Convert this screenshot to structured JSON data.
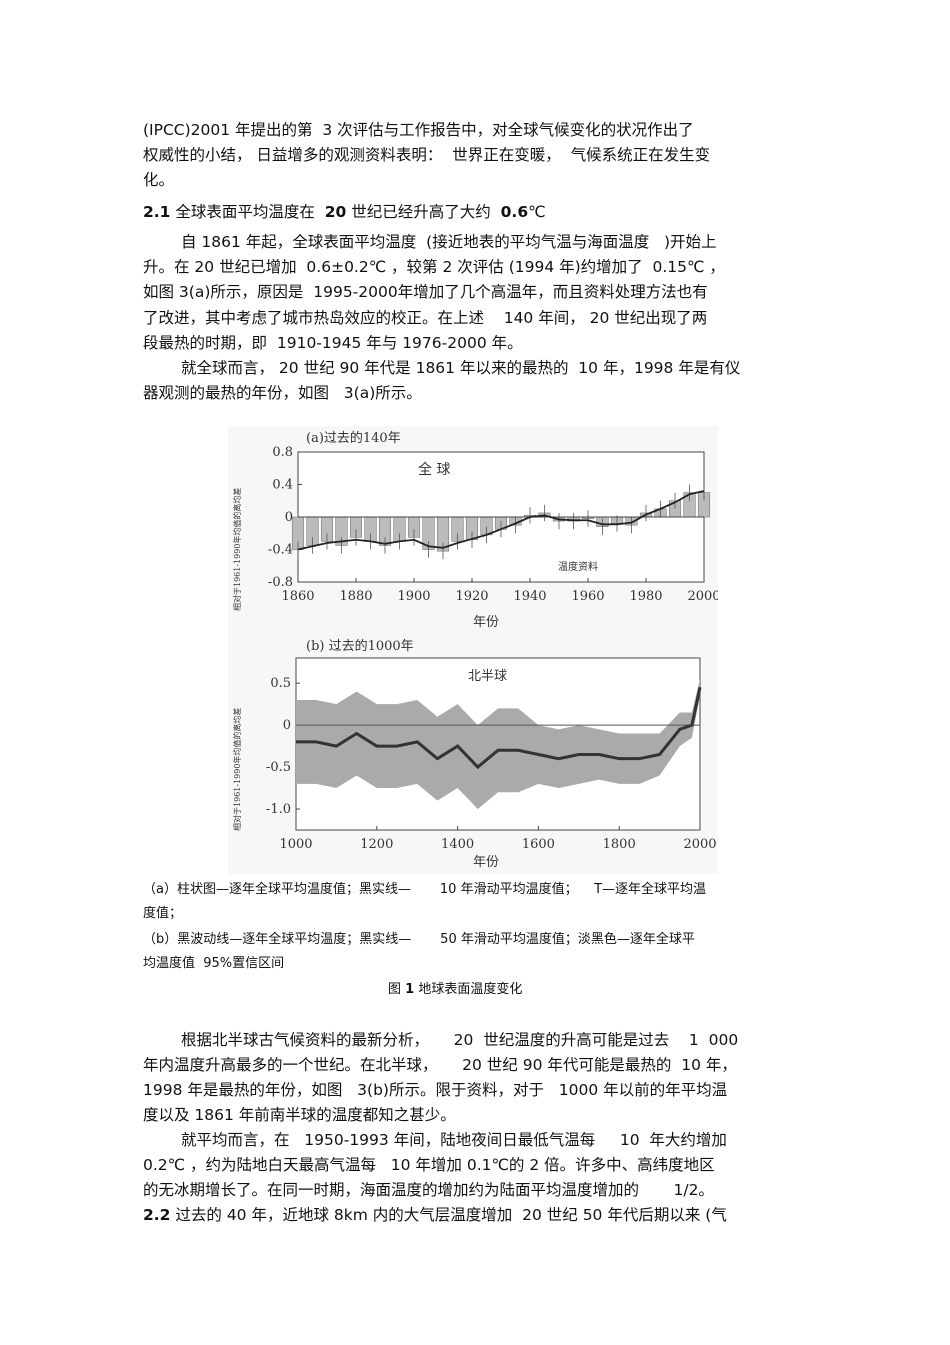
{
  "intro": [
    "(IPCC)2001 年提出的第  3 次评估与工作报告中，对全球气候变化的状况作出了",
    "权威性的小结， 日益增多的观测资料表明：  世界正在变暖，  气候系统正在发生变",
    "化。"
  ],
  "section_2_1": {
    "number": "2.1",
    "title_pre": " 全球表面平均温度在  ",
    "bold_num": "20",
    "title_mid": " 世纪已经升高了大约  ",
    "bold_val": "0.6",
    "unit": "℃"
  },
  "para1": [
    "自 1861 年起，全球表面平均温度  (接近地表的平均气温与海面温度   )开始上",
    "升。在 20 世纪已增加  0.6±0.2℃ ，较第 2 次评估 (1994 年)约增加了  0.15℃ ，",
    "如图 3(a)所示，原因是  1995-2000年增加了几个高温年，而且资料处理方法也有",
    "了改进，其中考虑了城市热岛效应的校正。在上述    140 年间， 20 世纪出现了两",
    "段最热的时期，即  1910-1945 年与 1976-2000 年。"
  ],
  "para2": [
    "就全球而言， 20 世纪 90 年代是 1861 年以来的最热的  10 年，1998 年是有仪",
    "器观测的最热的年份，如图   3(a)所示。"
  ],
  "captions": [
    "（a）柱状图—逐年全球平均温度值；黑实线—       10 年滑动平均温度值；    T—逐年全球平均温",
    "度值；",
    "（b）黑波动线—逐年全球平均温度；黑实线—       50 年滑动平均温度值；淡黑色—逐年全球平",
    "均温度值  95%置信区间"
  ],
  "figure_title": {
    "prefix": "图 ",
    "num": "1",
    "text": " 地球表面温度变化"
  },
  "para3": [
    "根据北半球古气候资料的最新分析，     20  世纪温度的升高可能是过去    1  000",
    "年内温度升高最多的一个世纪。在北半球，     20 世纪 90 年代可能是最热的  10 年，",
    "1998 年是最热的年份，如图   3(b)所示。限于资料，对于   1000 年以前的年平均温",
    "度以及 1861 年前南半球的温度都知之甚少。"
  ],
  "para4": [
    "就平均而言，在   1950-1993 年间，陆地夜间日最低气温每     10  年大约增加",
    "0.2℃ ，约为陆地白天最高气温每   10 年增加 0.1℃的 2 倍。许多中、高纬度地区",
    "的无冰期增长了。在同一时期，海面温度的增加约为陆面平均温度增加的       1/2。"
  ],
  "section_2_2": {
    "number": "2.2",
    "text": " 过去的 40 年，近地球 8km 内的大气层温度增加  20 世纪 50 年代后期以来 (气"
  },
  "chart_data": [
    {
      "type": "bar",
      "title": "(a)过去的140年",
      "annotation": "全  球",
      "legend_text": "温度资料",
      "ylabel": "相对于1961-1990年均值的离均差",
      "xlabel": "年份",
      "xlim": [
        1860,
        2000
      ],
      "ylim": [
        -0.8,
        0.8
      ],
      "xticks": [
        "1860",
        "1880",
        "1900",
        "1920",
        "1940",
        "1960",
        "1980",
        "2000"
      ],
      "yticks": [
        "0.8",
        "0.4",
        "0",
        "-0.4",
        "-0.8"
      ],
      "x": [
        1860,
        1865,
        1870,
        1875,
        1880,
        1885,
        1890,
        1895,
        1900,
        1905,
        1910,
        1915,
        1920,
        1925,
        1930,
        1935,
        1940,
        1945,
        1950,
        1955,
        1960,
        1965,
        1970,
        1975,
        1980,
        1985,
        1990,
        1995,
        2000
      ],
      "values": [
        -0.4,
        -0.35,
        -0.3,
        -0.35,
        -0.25,
        -0.3,
        -0.35,
        -0.3,
        -0.25,
        -0.4,
        -0.42,
        -0.3,
        -0.28,
        -0.22,
        -0.15,
        -0.1,
        0.02,
        0.05,
        -0.05,
        -0.05,
        -0.02,
        -0.12,
        -0.08,
        -0.1,
        0.05,
        0.1,
        0.2,
        0.3,
        0.3
      ],
      "smoothed": [
        -0.4,
        -0.36,
        -0.32,
        -0.3,
        -0.28,
        -0.3,
        -0.33,
        -0.3,
        -0.28,
        -0.36,
        -0.38,
        -0.32,
        -0.27,
        -0.22,
        -0.15,
        -0.08,
        0.0,
        0.02,
        -0.03,
        -0.04,
        -0.04,
        -0.09,
        -0.09,
        -0.07,
        0.03,
        0.1,
        0.18,
        0.28,
        0.32
      ]
    },
    {
      "type": "line",
      "title": "(b) 过去的1000年",
      "annotation": "北半球",
      "ylabel": "相对于1961-1990年均值的离均差",
      "xlabel": "年份",
      "xlim": [
        1000,
        2000
      ],
      "ylim": [
        -1.25,
        0.8
      ],
      "xticks": [
        "1000",
        "1200",
        "1400",
        "1600",
        "1800",
        "2000"
      ],
      "yticks": [
        "0.5",
        "0",
        "-0.5",
        "-1.0"
      ],
      "x": [
        1000,
        1050,
        1100,
        1150,
        1200,
        1250,
        1300,
        1350,
        1400,
        1450,
        1500,
        1550,
        1600,
        1650,
        1700,
        1750,
        1800,
        1850,
        1900,
        1950,
        1980,
        2000
      ],
      "values": [
        -0.2,
        -0.2,
        -0.25,
        -0.1,
        -0.25,
        -0.25,
        -0.2,
        -0.4,
        -0.25,
        -0.5,
        -0.3,
        -0.3,
        -0.35,
        -0.4,
        -0.35,
        -0.35,
        -0.4,
        -0.4,
        -0.35,
        -0.05,
        0.0,
        0.45
      ],
      "ci_halfwidth": [
        0.5,
        0.5,
        0.5,
        0.5,
        0.5,
        0.5,
        0.5,
        0.5,
        0.5,
        0.5,
        0.5,
        0.5,
        0.35,
        0.35,
        0.35,
        0.3,
        0.3,
        0.3,
        0.25,
        0.2,
        0.15,
        0.1
      ],
      "colors": {
        "band": "#aaaaaa",
        "line": "#333333"
      }
    }
  ]
}
